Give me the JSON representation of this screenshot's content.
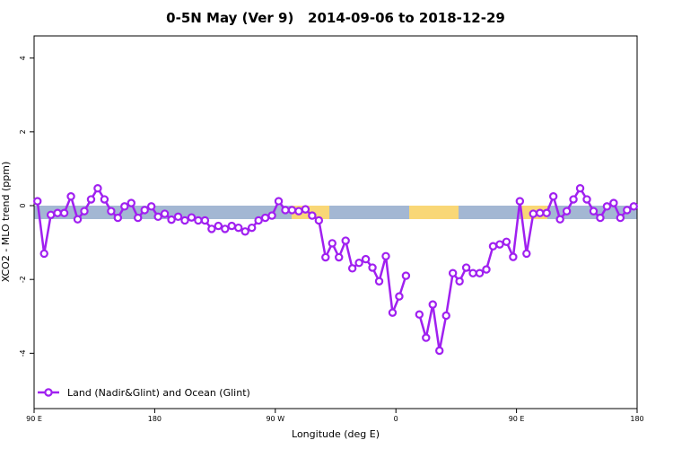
{
  "chart_data": {
    "type": "line",
    "title": "0-5N May (Ver 9)   2014-09-06 to 2018-12-29",
    "xlabel": "Longitude (deg E)",
    "ylabel": "XCO2 - MLO trend (ppm)",
    "xlim": [
      90,
      540
    ],
    "ylim": [
      -5.5,
      4.6
    ],
    "xticks": [
      {
        "value": 90,
        "label": "90 E"
      },
      {
        "value": 180,
        "label": "180"
      },
      {
        "value": 270,
        "label": "90 W"
      },
      {
        "value": 360,
        "label": "0"
      },
      {
        "value": 450,
        "label": "90 E"
      },
      {
        "value": 540,
        "label": "180"
      }
    ],
    "yticks": [
      -4,
      -2,
      0,
      2,
      4
    ],
    "legend": "bottom-left",
    "x": [
      92.5,
      97.5,
      102.5,
      107.5,
      112.5,
      117.5,
      122.5,
      127.5,
      132.5,
      137.5,
      142.5,
      147.5,
      152.5,
      157.5,
      162.5,
      167.5,
      172.5,
      177.5,
      182.5,
      187.5,
      192.5,
      197.5,
      202.5,
      207.5,
      212.5,
      217.5,
      222.5,
      227.5,
      232.5,
      237.5,
      242.5,
      247.5,
      252.5,
      257.5,
      262.5,
      267.5,
      272.5,
      277.5,
      282.5,
      287.5,
      292.5,
      297.5,
      302.5,
      307.5,
      312.5,
      317.5,
      322.5,
      327.5,
      332.5,
      337.5,
      342.5,
      347.5,
      352.5,
      357.5,
      362.5,
      367.5,
      372.5,
      377.5,
      382.5,
      387.5,
      392.5,
      397.5,
      402.5,
      407.5,
      412.5,
      417.5,
      422.5,
      427.5,
      432.5,
      437.5,
      442.5,
      447.5,
      452.5,
      457.5,
      462.5,
      467.5,
      472.5,
      477.5,
      482.5,
      487.5,
      492.5,
      497.5,
      502.5,
      507.5,
      512.5,
      517.5,
      522.5,
      527.5,
      532.5,
      537.5
    ],
    "series": [
      {
        "name": "Land (Nadir&Glint) and Ocean (Glint)",
        "color": "#a020f0",
        "values": [
          0.12,
          -1.3,
          -0.25,
          -0.2,
          -0.2,
          0.25,
          -0.37,
          -0.15,
          0.17,
          0.47,
          0.17,
          -0.15,
          -0.33,
          -0.02,
          0.07,
          -0.33,
          -0.12,
          -0.02,
          -0.3,
          -0.22,
          -0.38,
          -0.3,
          -0.4,
          -0.32,
          -0.4,
          -0.4,
          -0.63,
          -0.55,
          -0.63,
          -0.55,
          -0.6,
          -0.7,
          -0.6,
          -0.4,
          -0.33,
          -0.27,
          0.12,
          -0.12,
          -0.12,
          -0.15,
          -0.1,
          -0.27,
          -0.4,
          -1.4,
          -1.02,
          -1.4,
          -0.95,
          -1.7,
          -1.55,
          -1.45,
          -1.68,
          -2.05,
          -1.37,
          -2.9,
          -2.46,
          -1.9,
          null,
          -2.95,
          -3.58,
          -2.68,
          -3.93,
          -2.98,
          -1.83,
          -2.05,
          -1.68,
          -1.83,
          -1.83,
          -1.73,
          -1.1,
          -1.05,
          -0.98,
          -1.39,
          0.12,
          -1.3,
          -0.22,
          -0.2,
          -0.2,
          0.25,
          -0.37,
          -0.15,
          0.17,
          0.47,
          0.17,
          -0.15,
          -0.33,
          -0.02,
          0.07,
          -0.33,
          -0.12,
          -0.02
        ]
      }
    ]
  }
}
